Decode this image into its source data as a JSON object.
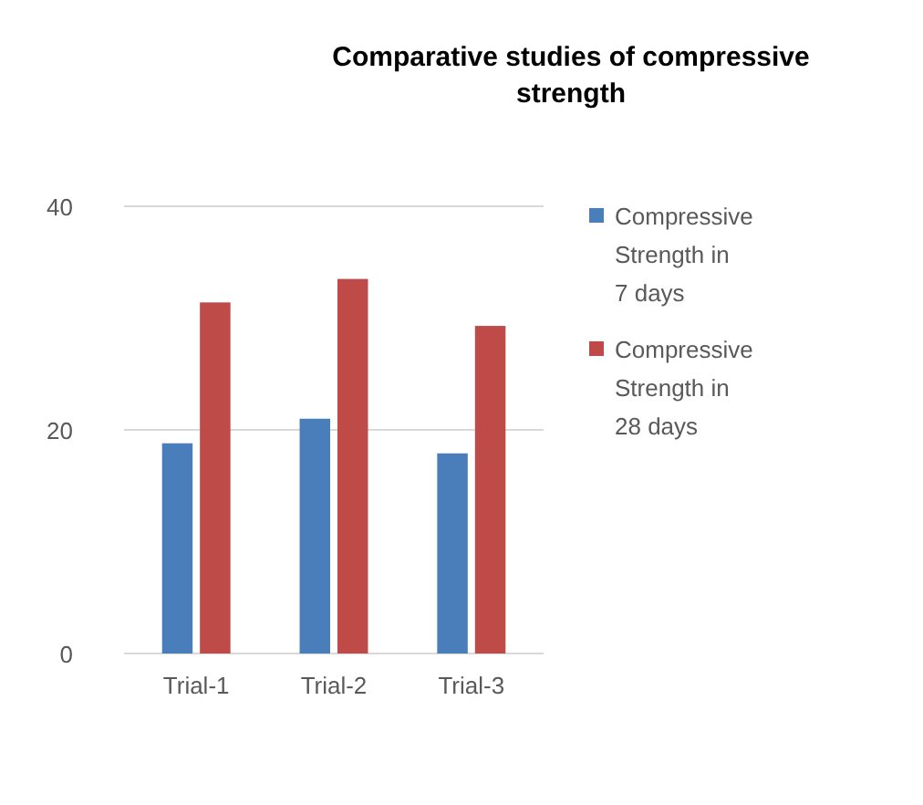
{
  "chart_data": {
    "type": "bar",
    "title": "Comparative studies of compressive strength",
    "categories": [
      "Trial-1",
      "Trial-2",
      "Trial-3"
    ],
    "series": [
      {
        "name": "Compressive Strength in 7 days",
        "color": "#4a7ebb",
        "values": [
          18.8,
          21,
          17.9
        ]
      },
      {
        "name": "Compressive Strength in 28 days",
        "color": "#be4b48",
        "values": [
          31.4,
          33.5,
          29.3
        ]
      }
    ],
    "ylim": [
      0,
      40
    ],
    "yticks": [
      0,
      20,
      40
    ],
    "grid": "y",
    "legend": "right"
  }
}
